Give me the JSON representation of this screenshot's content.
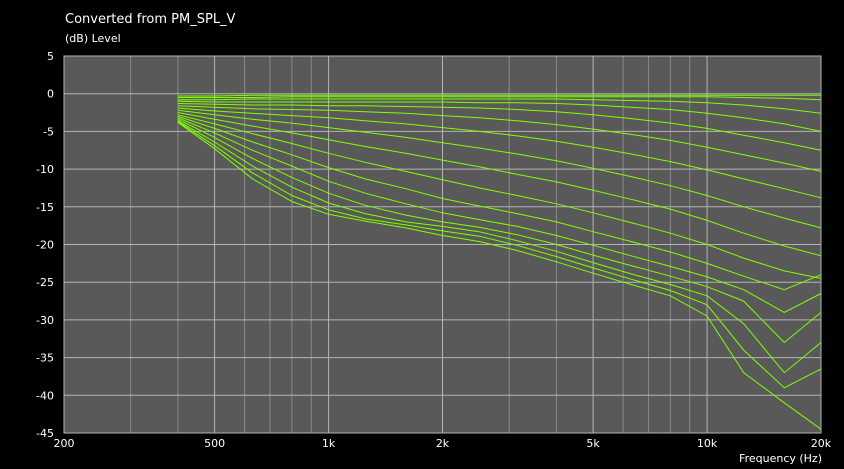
{
  "chart_data": {
    "type": "line",
    "title": "Converted from PM_SPL_V",
    "ylabel": "(dB)  Level",
    "xlabel": "Frequency  (Hz)",
    "xscale": "log",
    "xlim": [
      200,
      20000
    ],
    "ylim": [
      -45,
      5
    ],
    "grid": true,
    "background": "#595959",
    "line_color": "#7fff00",
    "x_ticks": [
      {
        "value": 200,
        "label": "200"
      },
      {
        "value": 500,
        "label": "500"
      },
      {
        "value": 1000,
        "label": "1k"
      },
      {
        "value": 2000,
        "label": "2k"
      },
      {
        "value": 5000,
        "label": "5k"
      },
      {
        "value": 10000,
        "label": "10k"
      },
      {
        "value": 20000,
        "label": "20k"
      }
    ],
    "x_grid": [
      300,
      400,
      600,
      700,
      800,
      900,
      3000,
      4000,
      6000,
      7000,
      8000,
      9000
    ],
    "y_ticks": [
      5,
      0,
      -5,
      -10,
      -15,
      -20,
      -25,
      -30,
      -35,
      -40,
      -45
    ],
    "x": [
      400,
      500,
      630,
      800,
      1000,
      1250,
      1600,
      2000,
      2500,
      3150,
      4000,
      5000,
      6300,
      8000,
      10000,
      12500,
      16000,
      20000
    ],
    "series": [
      {
        "values": [
          -0.3,
          -0.3,
          -0.2,
          -0.2,
          -0.2,
          -0.2,
          -0.2,
          -0.2,
          -0.2,
          -0.2,
          -0.2,
          -0.2,
          -0.2,
          -0.2,
          -0.2,
          -0.2,
          -0.2,
          -0.2
        ]
      },
      {
        "values": [
          -0.5,
          -0.5,
          -0.5,
          -0.4,
          -0.4,
          -0.4,
          -0.4,
          -0.4,
          -0.4,
          -0.4,
          -0.4,
          -0.4,
          -0.4,
          -0.4,
          -0.4,
          -0.5,
          -0.6,
          -0.8
        ]
      },
      {
        "values": [
          -0.8,
          -0.8,
          -0.7,
          -0.7,
          -0.7,
          -0.7,
          -0.7,
          -0.7,
          -0.7,
          -0.7,
          -0.7,
          -0.8,
          -0.9,
          -1.0,
          -1.2,
          -1.5,
          -2.0,
          -2.6
        ]
      },
      {
        "values": [
          -1.0,
          -1.1,
          -1.1,
          -1.1,
          -1.1,
          -1.1,
          -1.1,
          -1.1,
          -1.2,
          -1.2,
          -1.3,
          -1.5,
          -1.8,
          -2.1,
          -2.6,
          -3.2,
          -4.0,
          -5.0
        ]
      },
      {
        "values": [
          -1.3,
          -1.4,
          -1.5,
          -1.5,
          -1.6,
          -1.6,
          -1.7,
          -1.8,
          -1.9,
          -2.1,
          -2.4,
          -2.8,
          -3.3,
          -3.9,
          -4.6,
          -5.5,
          -6.5,
          -7.5
        ]
      },
      {
        "values": [
          -1.6,
          -1.8,
          -2.0,
          -2.1,
          -2.2,
          -2.4,
          -2.6,
          -2.9,
          -3.2,
          -3.6,
          -4.1,
          -4.7,
          -5.4,
          -6.2,
          -7.1,
          -8.1,
          -9.2,
          -10.3
        ]
      },
      {
        "values": [
          -1.9,
          -2.3,
          -2.6,
          -2.9,
          -3.2,
          -3.6,
          -4.0,
          -4.5,
          -5.0,
          -5.6,
          -6.3,
          -7.1,
          -8.0,
          -9.0,
          -10.1,
          -11.3,
          -12.6,
          -13.8
        ]
      },
      {
        "values": [
          -2.2,
          -2.8,
          -3.4,
          -3.9,
          -4.5,
          -5.1,
          -5.8,
          -6.5,
          -7.2,
          -8.0,
          -8.9,
          -9.9,
          -11.0,
          -12.2,
          -13.5,
          -15.0,
          -16.5,
          -17.8
        ]
      },
      {
        "values": [
          -2.5,
          -3.4,
          -4.3,
          -5.2,
          -6.1,
          -7.0,
          -7.9,
          -8.8,
          -9.7,
          -10.7,
          -11.7,
          -12.8,
          -14.0,
          -15.3,
          -16.8,
          -18.5,
          -20.2,
          -21.5
        ]
      },
      {
        "values": [
          -2.8,
          -4.0,
          -5.3,
          -6.6,
          -7.9,
          -9.1,
          -10.3,
          -11.4,
          -12.5,
          -13.5,
          -14.6,
          -15.8,
          -17.1,
          -18.5,
          -20.0,
          -21.8,
          -23.5,
          -24.5
        ]
      },
      {
        "values": [
          -3.0,
          -4.6,
          -6.4,
          -8.1,
          -9.8,
          -11.3,
          -12.6,
          -13.9,
          -14.9,
          -15.9,
          -17.0,
          -18.3,
          -19.6,
          -21.0,
          -22.5,
          -24.2,
          -26.0,
          -24.0
        ]
      },
      {
        "values": [
          -3.2,
          -5.2,
          -7.5,
          -9.6,
          -11.6,
          -13.2,
          -14.6,
          -15.8,
          -16.7,
          -17.6,
          -18.8,
          -20.1,
          -21.5,
          -22.9,
          -24.3,
          -26.0,
          -29.0,
          -26.5
        ]
      },
      {
        "values": [
          -3.4,
          -5.8,
          -8.6,
          -11.1,
          -13.2,
          -14.8,
          -16.1,
          -17.0,
          -17.7,
          -18.7,
          -20.0,
          -21.4,
          -22.8,
          -24.2,
          -25.6,
          -27.5,
          -33.0,
          -29.0
        ]
      },
      {
        "values": [
          -3.6,
          -6.4,
          -9.6,
          -12.4,
          -14.5,
          -15.9,
          -17.0,
          -17.6,
          -18.3,
          -19.5,
          -20.9,
          -22.4,
          -23.9,
          -25.3,
          -26.8,
          -30.5,
          -37.0,
          -33.0
        ]
      },
      {
        "values": [
          -3.7,
          -6.9,
          -10.5,
          -13.5,
          -15.4,
          -16.6,
          -17.4,
          -18.2,
          -18.9,
          -20.1,
          -21.6,
          -23.1,
          -24.6,
          -26.1,
          -28.0,
          -34.0,
          -39.0,
          -36.5
        ]
      },
      {
        "values": [
          -3.8,
          -7.3,
          -11.3,
          -14.3,
          -16.0,
          -16.9,
          -17.8,
          -18.8,
          -19.6,
          -20.8,
          -22.3,
          -23.8,
          -25.3,
          -26.8,
          -29.5,
          -37.0,
          -41.0,
          -44.5
        ]
      }
    ]
  }
}
